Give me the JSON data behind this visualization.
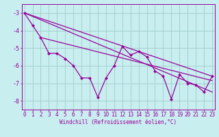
{
  "x": [
    0,
    1,
    2,
    3,
    4,
    5,
    6,
    7,
    8,
    9,
    10,
    11,
    12,
    13,
    14,
    15,
    16,
    17,
    18,
    19,
    20,
    21,
    22,
    23
  ],
  "y_main": [
    -3.0,
    -3.7,
    -4.4,
    -5.3,
    -5.3,
    -5.6,
    -6.0,
    -6.7,
    -6.7,
    -7.8,
    -6.7,
    -6.0,
    -4.9,
    -5.4,
    -5.2,
    -5.5,
    -6.3,
    -6.6,
    -7.9,
    -6.5,
    -7.0,
    -7.1,
    -7.5,
    -6.6
  ],
  "trend1_x": [
    0,
    23
  ],
  "trend1_y": [
    -3.0,
    -6.6
  ],
  "trend2_x": [
    0,
    23
  ],
  "trend2_y": [
    -3.0,
    -7.5
  ],
  "trend3_x": [
    2,
    23
  ],
  "trend3_y": [
    -4.4,
    -6.85
  ],
  "color": "#990099",
  "bg_color": "#C8EEF0",
  "grid_color": "#A0CCC8",
  "xlabel": "Windchill (Refroidissement éolien,°C)",
  "xlim": [
    -0.3,
    23.3
  ],
  "ylim": [
    -8.5,
    -2.5
  ],
  "yticks": [
    -8,
    -7,
    -6,
    -5,
    -4,
    -3
  ],
  "xticks": [
    0,
    1,
    2,
    3,
    4,
    5,
    6,
    7,
    8,
    9,
    10,
    11,
    12,
    13,
    14,
    15,
    16,
    17,
    18,
    19,
    20,
    21,
    22,
    23
  ],
  "xlabel_fontsize": 5.5,
  "tick_fontsize": 5.5,
  "linewidth": 0.9,
  "markersize": 2.5
}
